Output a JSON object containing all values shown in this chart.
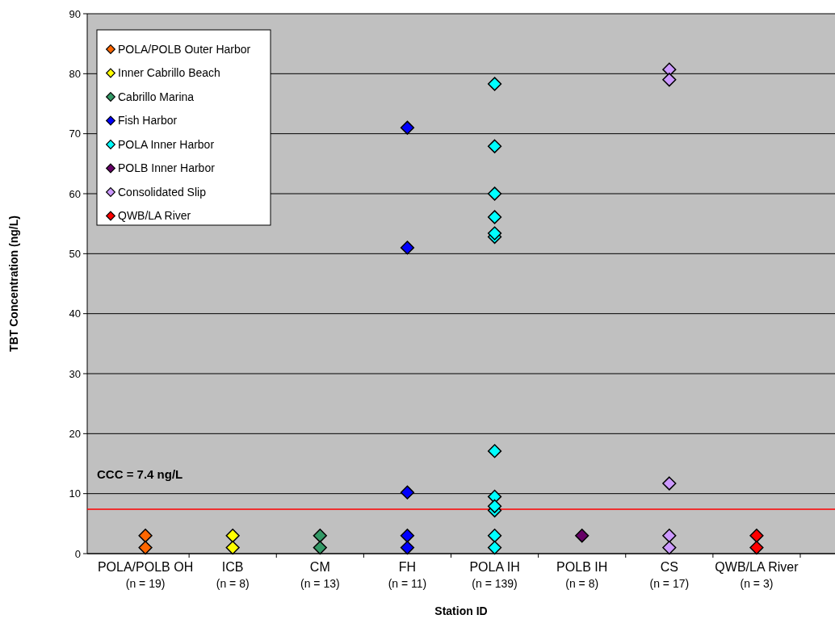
{
  "chart_data": {
    "type": "scatter",
    "xlabel": "Station ID",
    "ylabel": "TBT Concentration (ng/L)",
    "categories": [
      "POLA/POLB OH\n(n = 19)",
      "ICB\n(n = 8)",
      "CM\n(n = 13)",
      "FH\n(n = 11)",
      "POLA IH\n(n = 139)",
      "POLB  IH\n(n = 8)",
      "CS\n(n = 17)",
      "QWB/LA River\n(n = 3)"
    ],
    "series": [
      {
        "name": "POLA/POLB Outer Harbor",
        "color": "#ff6600",
        "x": [
          "POLA/POLB OH\n(n = 19)",
          "POLA/POLB OH\n(n = 19)"
        ],
        "values": [
          3,
          1
        ]
      },
      {
        "name": "Inner Cabrillo Beach",
        "color": "#ffff00",
        "x": [
          "ICB\n(n = 8)",
          "ICB\n(n = 8)"
        ],
        "values": [
          3,
          1
        ]
      },
      {
        "name": "Cabrillo Marina",
        "color": "#339966",
        "x": [
          "CM\n(n = 13)",
          "CM\n(n = 13)"
        ],
        "values": [
          3,
          1
        ]
      },
      {
        "name": "Fish Harbor",
        "color": "#0000ff",
        "x": [
          "FH\n(n = 11)",
          "FH\n(n = 11)",
          "FH\n(n = 11)",
          "FH\n(n = 11)",
          "FH\n(n = 11)"
        ],
        "values": [
          71,
          51,
          10.2,
          3,
          1
        ]
      },
      {
        "name": "POLA Inner Harbor",
        "color": "#00ffff",
        "x": [
          "POLA IH\n(n = 139)",
          "POLA IH\n(n = 139)",
          "POLA IH\n(n = 139)",
          "POLA IH\n(n = 139)",
          "POLA IH\n(n = 139)",
          "POLA IH\n(n = 139)",
          "POLA IH\n(n = 139)",
          "POLA IH\n(n = 139)",
          "POLA IH\n(n = 139)",
          "POLA IH\n(n = 139)",
          "POLA IH\n(n = 139)",
          "POLA IH\n(n = 139)"
        ],
        "values": [
          78.3,
          67.9,
          60,
          56.1,
          52.8,
          53.4,
          17.1,
          9.5,
          7.2,
          7.9,
          3,
          1
        ]
      },
      {
        "name": "POLB Inner Harbor",
        "color": "#660066",
        "x": [
          "POLB  IH\n(n = 8)"
        ],
        "values": [
          3
        ]
      },
      {
        "name": "Consolidated Slip",
        "color": "#cc99ff",
        "x": [
          "CS\n(n = 17)",
          "CS\n(n = 17)",
          "CS\n(n = 17)",
          "CS\n(n = 17)",
          "CS\n(n = 17)"
        ],
        "values": [
          80.7,
          79,
          11.7,
          3,
          1
        ]
      },
      {
        "name": "QWB/LA River",
        "color": "#ff0000",
        "x": [
          "QWB/LA River\n(n = 3)",
          "QWB/LA River\n(n = 3)"
        ],
        "values": [
          3,
          1
        ]
      }
    ],
    "ylim": [
      0,
      90
    ],
    "yticks": [
      0,
      10,
      20,
      30,
      40,
      50,
      60,
      70,
      80,
      90
    ],
    "grid": "y",
    "legend": "top left",
    "marker": "diamond",
    "ref_lines": [
      {
        "axis": "y",
        "value": 7.4,
        "label": "CCC = 7.4 ng/L",
        "color": "#ff0000"
      }
    ]
  }
}
